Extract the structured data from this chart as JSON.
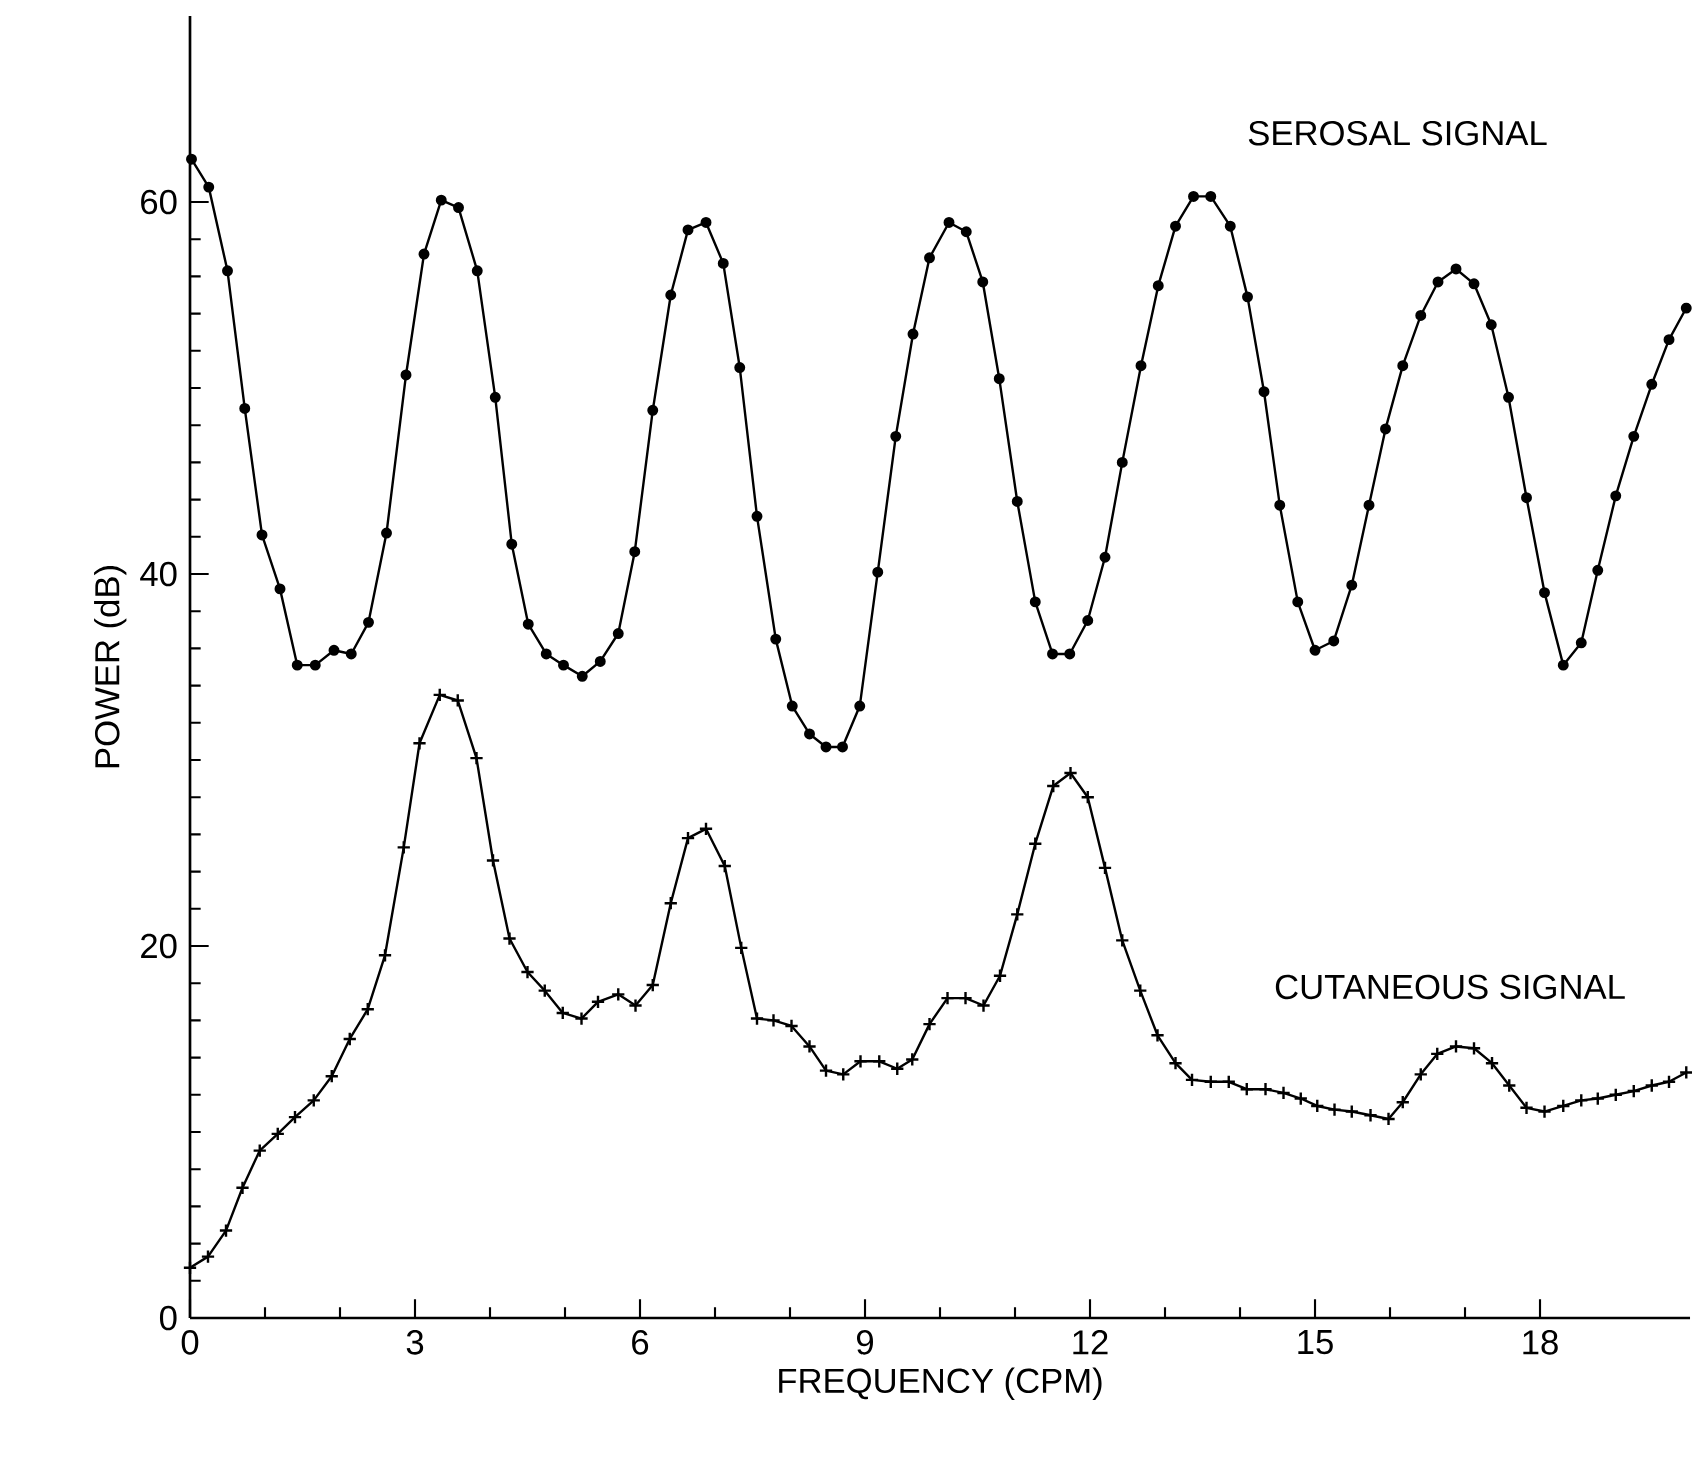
{
  "chart_data": {
    "type": "line",
    "xlabel": "FREQUENCY (CPM)",
    "ylabel": "POWER (dB)",
    "xlim": [
      0,
      20
    ],
    "ylim": [
      0,
      70
    ],
    "xticks": [
      0,
      3,
      6,
      9,
      12,
      15,
      18
    ],
    "yticks": [
      0,
      20,
      40,
      60
    ],
    "legend": false,
    "line_style": "solid",
    "series": [
      {
        "name": "SEROSAL SIGNAL",
        "color": "#000000",
        "marker": "circle",
        "x": [
          0.02,
          0.25,
          0.5,
          0.73,
          0.96,
          1.2,
          1.43,
          1.67,
          1.92,
          2.15,
          2.38,
          2.62,
          2.88,
          3.12,
          3.35,
          3.58,
          3.83,
          4.07,
          4.29,
          4.51,
          4.75,
          4.98,
          5.23,
          5.47,
          5.71,
          5.93,
          6.17,
          6.41,
          6.64,
          6.88,
          7.11,
          7.33,
          7.56,
          7.81,
          8.03,
          8.26,
          8.48,
          8.7,
          8.93,
          9.17,
          9.41,
          9.64,
          9.86,
          10.12,
          10.35,
          10.57,
          10.79,
          11.03,
          11.27,
          11.5,
          11.73,
          11.97,
          12.2,
          12.43,
          12.68,
          12.91,
          13.14,
          13.38,
          13.61,
          13.87,
          14.1,
          14.32,
          14.53,
          14.77,
          15.0,
          15.25,
          15.49,
          15.72,
          15.94,
          16.17,
          16.41,
          16.64,
          16.88,
          17.12,
          17.35,
          17.58,
          17.82,
          18.06,
          18.31,
          18.55,
          18.77,
          19.01,
          19.25,
          19.49,
          19.72,
          19.95
        ],
        "values": [
          62.3,
          60.8,
          56.3,
          48.9,
          42.1,
          39.2,
          35.1,
          35.1,
          35.9,
          35.7,
          37.4,
          42.2,
          50.7,
          57.2,
          60.1,
          59.7,
          56.3,
          49.5,
          41.6,
          37.3,
          35.7,
          35.1,
          34.5,
          35.3,
          36.8,
          41.2,
          48.8,
          55.0,
          58.5,
          58.9,
          56.7,
          51.1,
          43.1,
          36.5,
          32.9,
          31.4,
          30.7,
          30.7,
          32.9,
          40.1,
          47.4,
          52.9,
          57.0,
          58.9,
          58.4,
          55.7,
          50.5,
          43.9,
          38.5,
          35.7,
          35.7,
          37.5,
          40.9,
          46.0,
          51.2,
          55.5,
          58.7,
          60.3,
          60.3,
          58.7,
          54.9,
          49.8,
          43.7,
          38.5,
          35.9,
          36.4,
          39.4,
          43.7,
          47.8,
          51.2,
          53.9,
          55.7,
          56.4,
          55.6,
          53.4,
          49.5,
          44.1,
          39.0,
          35.1,
          36.3,
          40.2,
          44.2,
          47.4,
          50.2,
          52.6,
          54.3
        ]
      },
      {
        "name": "CUTANEOUS SIGNAL",
        "color": "#000000",
        "marker": "cross",
        "x": [
          0,
          0.24,
          0.48,
          0.7,
          0.93,
          1.17,
          1.4,
          1.65,
          1.89,
          2.13,
          2.37,
          2.6,
          2.85,
          3.06,
          3.33,
          3.57,
          3.82,
          4.04,
          4.26,
          4.5,
          4.73,
          4.97,
          5.22,
          5.44,
          5.71,
          5.94,
          6.17,
          6.41,
          6.64,
          6.88,
          7.13,
          7.35,
          7.56,
          7.78,
          8.02,
          8.26,
          8.48,
          8.71,
          8.94,
          9.19,
          9.43,
          9.63,
          9.86,
          10.1,
          10.34,
          10.58,
          10.8,
          11.03,
          11.27,
          11.51,
          11.74,
          11.97,
          12.2,
          12.43,
          12.67,
          12.9,
          13.14,
          13.36,
          13.61,
          13.85,
          14.09,
          14.34,
          14.58,
          14.81,
          15.03,
          15.26,
          15.49,
          15.74,
          15.98,
          16.17,
          16.41,
          16.63,
          16.88,
          17.12,
          17.36,
          17.59,
          17.82,
          18.06,
          18.31,
          18.55,
          18.77,
          19.01,
          19.25,
          19.49,
          19.72,
          19.95
        ],
        "values": [
          2.7,
          3.3,
          4.7,
          7.0,
          9.0,
          9.9,
          10.8,
          11.7,
          13.0,
          15.0,
          16.6,
          19.5,
          25.3,
          30.9,
          33.5,
          33.2,
          30.1,
          24.6,
          20.4,
          18.6,
          17.6,
          16.4,
          16.1,
          17.0,
          17.4,
          16.8,
          17.9,
          22.3,
          25.8,
          26.3,
          24.3,
          19.9,
          16.1,
          16.0,
          15.7,
          14.6,
          13.3,
          13.1,
          13.8,
          13.8,
          13.4,
          13.9,
          15.8,
          17.2,
          17.2,
          16.8,
          18.4,
          21.7,
          25.5,
          28.6,
          29.3,
          28.0,
          24.2,
          20.3,
          17.6,
          15.2,
          13.7,
          12.8,
          12.7,
          12.7,
          12.3,
          12.3,
          12.1,
          11.8,
          11.4,
          11.2,
          11.1,
          10.9,
          10.7,
          11.6,
          13.1,
          14.2,
          14.6,
          14.5,
          13.7,
          12.5,
          11.3,
          11.1,
          11.4,
          11.7,
          11.8,
          12.0,
          12.2,
          12.5,
          12.7,
          13.2
        ]
      }
    ]
  }
}
